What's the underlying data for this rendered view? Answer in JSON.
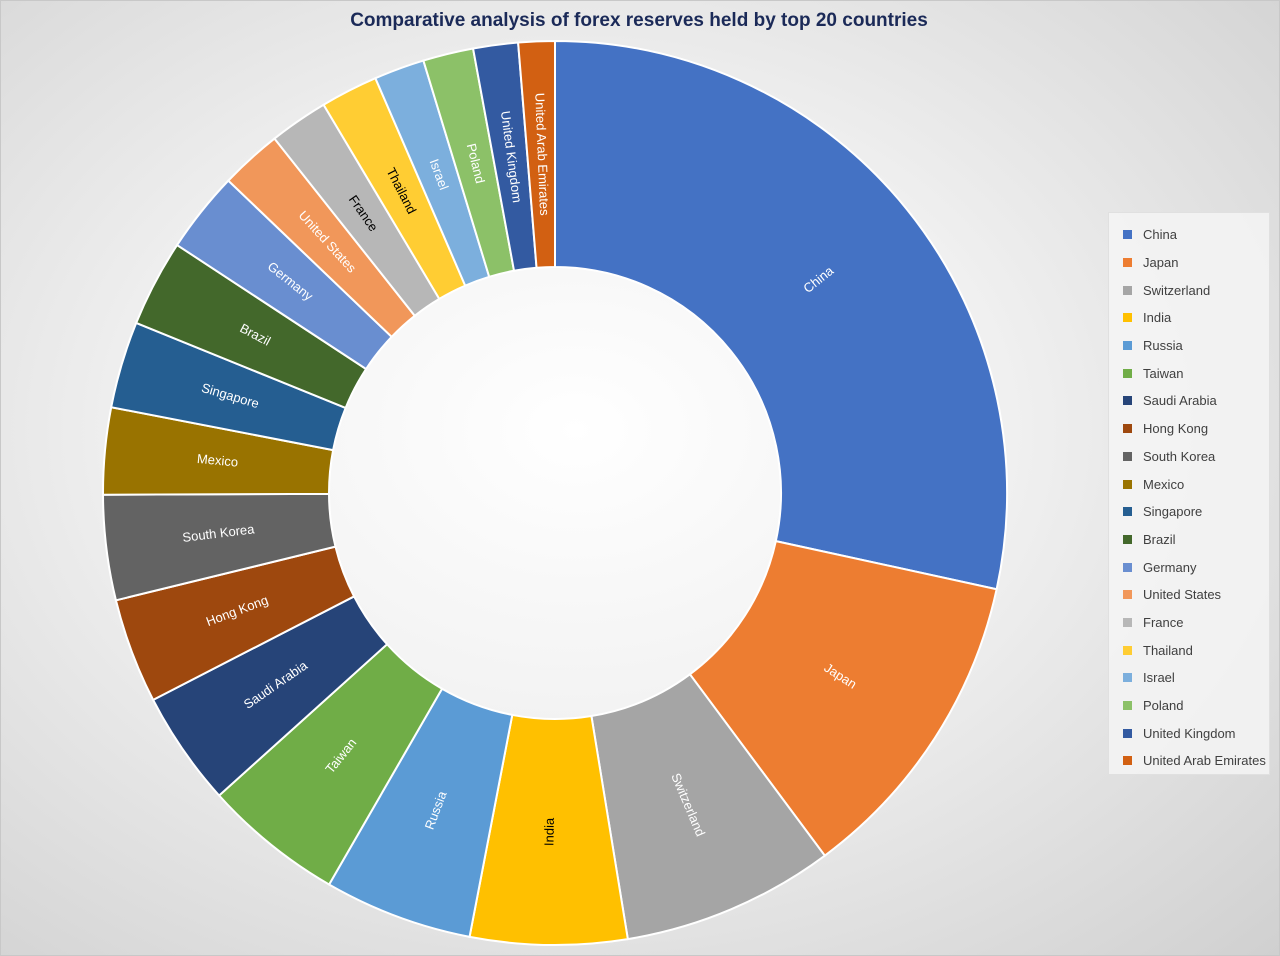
{
  "chart_data": {
    "type": "pie",
    "variant": "donut",
    "title": "Comparative analysis of forex reserves held by top 20 countries",
    "value_unit": "percent share of total (estimated)",
    "legend_position": "right",
    "categories": [
      "China",
      "Japan",
      "Switzerland",
      "India",
      "Russia",
      "Taiwan",
      "Saudi Arabia",
      "Hong Kong",
      "South Korea",
      "Mexico",
      "Singapore",
      "Brazil",
      "Germany",
      "United States",
      "France",
      "Thailand",
      "Israel",
      "Poland",
      "United Kingdom",
      "United Arab Emirates"
    ],
    "values": [
      28.4,
      11.4,
      7.6,
      5.6,
      5.3,
      5.0,
      4.1,
      3.75,
      3.75,
      3.1,
      3.1,
      3.1,
      2.9,
      2.2,
      2.1,
      2.05,
      1.8,
      1.8,
      1.6,
      1.3
    ],
    "colors": [
      "#4472C4",
      "#ED7D31",
      "#A5A5A5",
      "#FFC000",
      "#5B9BD5",
      "#70AD47",
      "#264478",
      "#9E480E",
      "#636363",
      "#997300",
      "#255E91",
      "#43682B",
      "#698ED0",
      "#F1975A",
      "#B7B7B7",
      "#FFCD33",
      "#7CAFDD",
      "#8CC168",
      "#335AA1",
      "#D26012"
    ],
    "label_colors": [
      "#ffffff",
      "#ffffff",
      "#ffffff",
      "#000000",
      "#ffffff",
      "#ffffff",
      "#ffffff",
      "#ffffff",
      "#ffffff",
      "#ffffff",
      "#ffffff",
      "#ffffff",
      "#ffffff",
      "#ffffff",
      "#000000",
      "#000000",
      "#ffffff",
      "#ffffff",
      "#ffffff",
      "#ffffff"
    ]
  }
}
